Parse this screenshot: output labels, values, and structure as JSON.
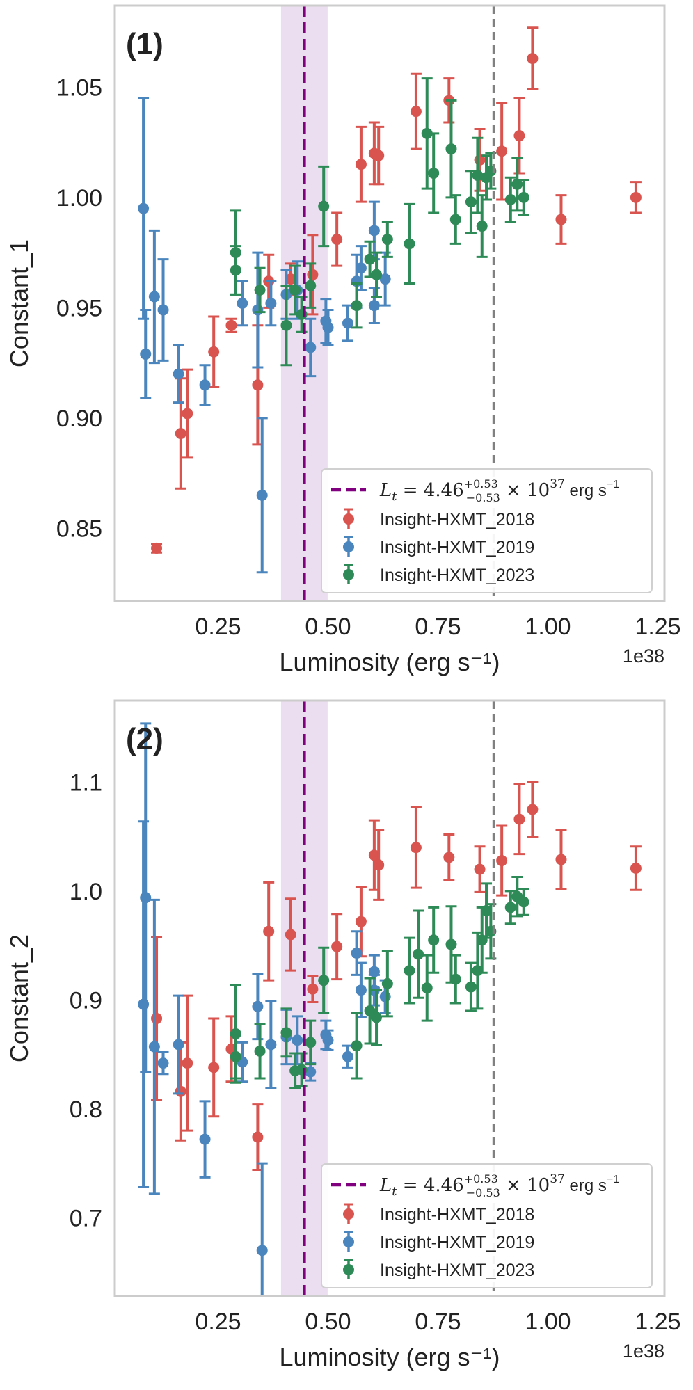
{
  "chart_data": [
    {
      "type": "scatter",
      "panel_label": "(1)",
      "xlabel": "Luminosity (erg s⁻¹)",
      "ylabel": "Constant_1",
      "x_offset_label": "1e38",
      "xticks": [
        0.25,
        0.5,
        0.75,
        1.0,
        1.25
      ],
      "xtick_labels": [
        "0.25",
        "0.50",
        "0.75",
        "1.00",
        "1.25"
      ],
      "yticks": [
        0.85,
        0.9,
        0.95,
        1.0,
        1.05
      ],
      "ytick_labels": [
        "0.85",
        "0.90",
        "0.95",
        "1.00",
        "1.05"
      ],
      "xlim": [
        0.015,
        1.265
      ],
      "ylim": [
        0.817,
        1.087
      ],
      "grid": false,
      "legend_position": "lower-right",
      "threshold": {
        "value": 0.446,
        "band": [
          0.393,
          0.499
        ],
        "color": "#800080",
        "band_color": "#e9d8ee",
        "label_prefix": "L",
        "label_sub": "t",
        "label_mid": " = 4.46",
        "label_sup": "+0.53",
        "label_sub2": "−0.53",
        "label_times": " × 10",
        "label_exp": "37",
        "label_unit": " erg s",
        "label_unit_exp": "−1"
      },
      "reference_line": {
        "value": 0.877,
        "color": "#808080"
      },
      "series": [
        {
          "name": "Insight-HXMT_2018",
          "color": "#d9534f",
          "points": [
            [
              0.11,
              0.841,
              0.002
            ],
            [
              0.165,
              0.893,
              0.025
            ],
            [
              0.18,
              0.902,
              0.02
            ],
            [
              0.24,
              0.93,
              0.016
            ],
            [
              0.28,
              0.942,
              0.003
            ],
            [
              0.34,
              0.915,
              0.027
            ],
            [
              0.365,
              0.962,
              0.012
            ],
            [
              0.415,
              0.963,
              0.007
            ],
            [
              0.465,
              0.965,
              0.018
            ],
            [
              0.52,
              0.981,
              0.012
            ],
            [
              0.575,
              1.015,
              0.017
            ],
            [
              0.605,
              1.02,
              0.014
            ],
            [
              0.615,
              1.019,
              0.013
            ],
            [
              0.7,
              1.039,
              0.017
            ],
            [
              0.775,
              1.044,
              0.01
            ],
            [
              0.845,
              1.017,
              0.014
            ],
            [
              0.895,
              1.021,
              0.022
            ],
            [
              0.935,
              1.028,
              0.017
            ],
            [
              0.965,
              1.063,
              0.014
            ],
            [
              1.03,
              0.99,
              0.011
            ],
            [
              1.2,
              1.0,
              0.007
            ]
          ]
        },
        {
          "name": "Insight-HXMT_2019",
          "color": "#4a86bd",
          "points": [
            [
              0.08,
              0.995,
              0.05
            ],
            [
              0.085,
              0.929,
              0.02
            ],
            [
              0.105,
              0.955,
              0.03
            ],
            [
              0.125,
              0.949,
              0.023
            ],
            [
              0.16,
              0.92,
              0.013
            ],
            [
              0.22,
              0.915,
              0.009
            ],
            [
              0.305,
              0.952,
              0.01
            ],
            [
              0.34,
              0.949,
              0.026
            ],
            [
              0.35,
              0.865,
              0.035
            ],
            [
              0.37,
              0.952,
              0.01
            ],
            [
              0.405,
              0.956,
              0.011
            ],
            [
              0.43,
              0.958,
              0.013
            ],
            [
              0.46,
              0.932,
              0.013
            ],
            [
              0.495,
              0.944,
              0.01
            ],
            [
              0.5,
              0.941,
              0.008
            ],
            [
              0.545,
              0.943,
              0.008
            ],
            [
              0.565,
              0.962,
              0.012
            ],
            [
              0.575,
              0.968,
              0.01
            ],
            [
              0.605,
              0.985,
              0.013
            ],
            [
              0.605,
              0.951,
              0.008
            ],
            [
              0.63,
              0.963,
              0.012
            ]
          ]
        },
        {
          "name": "Insight-HXMT_2023",
          "color": "#2e8b57",
          "points": [
            [
              0.29,
              0.975,
              0.019
            ],
            [
              0.29,
              0.967,
              0.011
            ],
            [
              0.345,
              0.958,
              0.01
            ],
            [
              0.405,
              0.942,
              0.018
            ],
            [
              0.425,
              0.958,
              0.011
            ],
            [
              0.44,
              0.947,
              0.008
            ],
            [
              0.46,
              0.96,
              0.01
            ],
            [
              0.49,
              0.996,
              0.018
            ],
            [
              0.565,
              0.951,
              0.01
            ],
            [
              0.595,
              0.972,
              0.008
            ],
            [
              0.61,
              0.965,
              0.01
            ],
            [
              0.635,
              0.981,
              0.008
            ],
            [
              0.685,
              0.979,
              0.018
            ],
            [
              0.725,
              1.029,
              0.025
            ],
            [
              0.74,
              1.011,
              0.018
            ],
            [
              0.78,
              1.022,
              0.022
            ],
            [
              0.79,
              0.99,
              0.011
            ],
            [
              0.825,
              0.998,
              0.014
            ],
            [
              0.84,
              1.01,
              0.017
            ],
            [
              0.85,
              0.987,
              0.014
            ],
            [
              0.86,
              1.009,
              0.01
            ],
            [
              0.87,
              1.012,
              0.008
            ],
            [
              0.915,
              0.999,
              0.01
            ],
            [
              0.93,
              1.006,
              0.012
            ],
            [
              0.945,
              1.0,
              0.008
            ]
          ]
        }
      ]
    },
    {
      "type": "scatter",
      "panel_label": "(2)",
      "xlabel": "Luminosity (erg s⁻¹)",
      "ylabel": "Constant_2",
      "x_offset_label": "1e38",
      "xticks": [
        0.25,
        0.5,
        0.75,
        1.0,
        1.25
      ],
      "xtick_labels": [
        "0.25",
        "0.50",
        "0.75",
        "1.00",
        "1.25"
      ],
      "yticks": [
        0.7,
        0.8,
        0.9,
        1.0,
        1.1
      ],
      "ytick_labels": [
        "0.7",
        "0.8",
        "0.9",
        "1.0",
        "1.1"
      ],
      "xlim": [
        0.015,
        1.265
      ],
      "ylim": [
        0.628,
        1.175
      ],
      "grid": false,
      "legend_position": "lower-right",
      "threshold": {
        "value": 0.446,
        "band": [
          0.393,
          0.499
        ],
        "color": "#800080",
        "band_color": "#e9d8ee",
        "label_prefix": "L",
        "label_sub": "t",
        "label_mid": " = 4.46",
        "label_sup": "+0.53",
        "label_sub2": "−0.53",
        "label_times": " × 10",
        "label_exp": "37",
        "label_unit": " erg s",
        "label_unit_exp": "−1"
      },
      "reference_line": {
        "value": 0.877,
        "color": "#808080"
      },
      "series": [
        {
          "name": "Insight-HXMT_2018",
          "color": "#d9534f",
          "points": [
            [
              0.11,
              0.883,
              0.075
            ],
            [
              0.165,
              0.816,
              0.045
            ],
            [
              0.18,
              0.842,
              0.062
            ],
            [
              0.24,
              0.838,
              0.045
            ],
            [
              0.28,
              0.855,
              0.03
            ],
            [
              0.34,
              0.774,
              0.03
            ],
            [
              0.365,
              0.963,
              0.045
            ],
            [
              0.415,
              0.96,
              0.033
            ],
            [
              0.465,
              0.91,
              0.012
            ],
            [
              0.52,
              0.949,
              0.03
            ],
            [
              0.575,
              0.972,
              0.032
            ],
            [
              0.605,
              1.033,
              0.032
            ],
            [
              0.615,
              1.024,
              0.032
            ],
            [
              0.7,
              1.04,
              0.037
            ],
            [
              0.775,
              1.031,
              0.021
            ],
            [
              0.845,
              1.02,
              0.021
            ],
            [
              0.895,
              1.028,
              0.032
            ],
            [
              0.935,
              1.066,
              0.032
            ],
            [
              0.965,
              1.075,
              0.025
            ],
            [
              1.03,
              1.029,
              0.027
            ],
            [
              1.2,
              1.021,
              0.02
            ]
          ]
        },
        {
          "name": "Insight-HXMT_2019",
          "color": "#4a86bd",
          "points": [
            [
              0.08,
              0.896,
              0.168
            ],
            [
              0.085,
              0.994,
              0.16
            ],
            [
              0.105,
              0.857,
              0.135
            ],
            [
              0.125,
              0.842,
              0.01
            ],
            [
              0.16,
              0.859,
              0.045
            ],
            [
              0.22,
              0.772,
              0.035
            ],
            [
              0.305,
              0.843,
              0.018
            ],
            [
              0.34,
              0.894,
              0.03
            ],
            [
              0.35,
              0.67,
              0.08
            ],
            [
              0.37,
              0.859,
              0.04
            ],
            [
              0.405,
              0.866,
              0.025
            ],
            [
              0.43,
              0.863,
              0.022
            ],
            [
              0.46,
              0.834,
              0.008
            ],
            [
              0.495,
              0.868,
              0.013
            ],
            [
              0.5,
              0.863,
              0.009
            ],
            [
              0.545,
              0.848,
              0.01
            ],
            [
              0.565,
              0.943,
              0.02
            ],
            [
              0.575,
              0.909,
              0.025
            ],
            [
              0.605,
              0.926,
              0.015
            ],
            [
              0.605,
              0.909,
              0.014
            ],
            [
              0.63,
              0.903,
              0.015
            ]
          ]
        },
        {
          "name": "Insight-HXMT_2023",
          "color": "#2e8b57",
          "points": [
            [
              0.29,
              0.869,
              0.045
            ],
            [
              0.29,
              0.848,
              0.02
            ],
            [
              0.345,
              0.853,
              0.025
            ],
            [
              0.405,
              0.87,
              0.022
            ],
            [
              0.425,
              0.835,
              0.016
            ],
            [
              0.44,
              0.836,
              0.015
            ],
            [
              0.46,
              0.861,
              0.02
            ],
            [
              0.49,
              0.918,
              0.03
            ],
            [
              0.565,
              0.858,
              0.03
            ],
            [
              0.595,
              0.89,
              0.03
            ],
            [
              0.61,
              0.884,
              0.025
            ],
            [
              0.635,
              0.915,
              0.03
            ],
            [
              0.685,
              0.927,
              0.03
            ],
            [
              0.705,
              0.942,
              0.04
            ],
            [
              0.725,
              0.911,
              0.03
            ],
            [
              0.74,
              0.955,
              0.03
            ],
            [
              0.78,
              0.951,
              0.035
            ],
            [
              0.79,
              0.919,
              0.022
            ],
            [
              0.825,
              0.912,
              0.022
            ],
            [
              0.84,
              0.927,
              0.035
            ],
            [
              0.85,
              0.955,
              0.03
            ],
            [
              0.86,
              0.982,
              0.025
            ],
            [
              0.87,
              0.963,
              0.025
            ],
            [
              0.915,
              0.985,
              0.015
            ],
            [
              0.93,
              0.995,
              0.018
            ],
            [
              0.945,
              0.99,
              0.012
            ]
          ]
        }
      ]
    }
  ]
}
